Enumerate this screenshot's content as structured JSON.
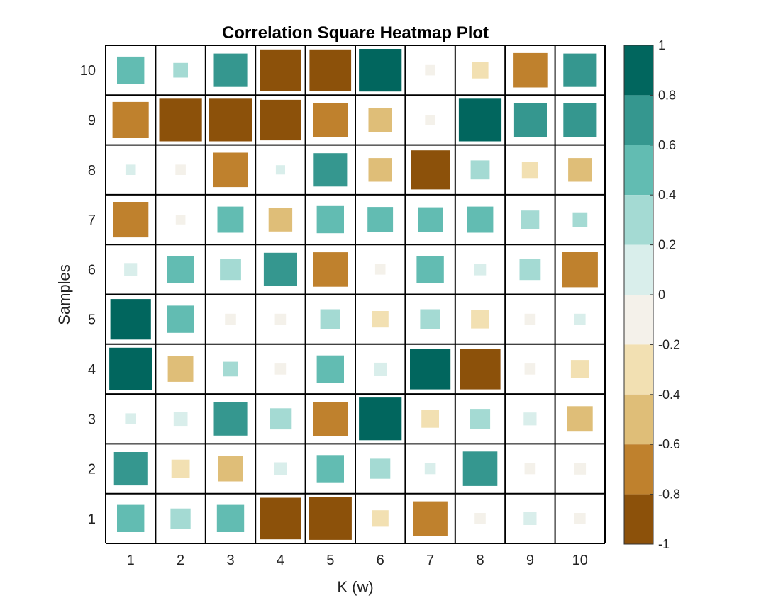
{
  "chart_data": {
    "type": "heatmap",
    "title": "Correlation Square Heatmap Plot",
    "xlabel": "K (w)",
    "ylabel": "Samples",
    "x_categories": [
      "1",
      "2",
      "3",
      "4",
      "5",
      "6",
      "7",
      "8",
      "9",
      "10"
    ],
    "y_categories": [
      "1",
      "2",
      "3",
      "4",
      "5",
      "6",
      "7",
      "8",
      "9",
      "10"
    ],
    "y_order": "bottom-to-top",
    "color_range": [
      -1,
      1
    ],
    "colorbar": {
      "placement": "right",
      "ticks": [
        "1",
        "0.8",
        "0.6",
        "0.4",
        "0.2",
        "0",
        "-0.2",
        "-0.4",
        "-0.6",
        "-0.8",
        "-1"
      ],
      "levels": [
        {
          "min": 0.8,
          "max": 1.0,
          "color": "#01665E"
        },
        {
          "min": 0.6,
          "max": 0.8,
          "color": "#35978F"
        },
        {
          "min": 0.4,
          "max": 0.6,
          "color": "#62BCB2"
        },
        {
          "min": 0.2,
          "max": 0.4,
          "color": "#A4DAD3"
        },
        {
          "min": 0.0,
          "max": 0.2,
          "color": "#D9EEEB"
        },
        {
          "min": -0.2,
          "max": 0.0,
          "color": "#F4F1EA"
        },
        {
          "min": -0.4,
          "max": -0.2,
          "color": "#F2E0B2"
        },
        {
          "min": -0.6,
          "max": -0.4,
          "color": "#DFBE78"
        },
        {
          "min": -0.8,
          "max": -0.6,
          "color": "#BF812D"
        },
        {
          "min": -1.0,
          "max": -0.8,
          "color": "#8C510A"
        }
      ]
    },
    "values": [
      [
        0.55,
        0.35,
        0.55,
        -0.95,
        -0.98,
        -0.25,
        -0.75,
        -0.1,
        0.15,
        -0.1
      ],
      [
        0.72,
        -0.3,
        -0.5,
        0.15,
        0.55,
        0.35,
        0.1,
        0.75,
        -0.1,
        -0.12
      ],
      [
        0.1,
        0.18,
        0.72,
        0.38,
        -0.75,
        0.98,
        -0.28,
        0.35,
        0.15,
        -0.5
      ],
      [
        0.98,
        -0.5,
        0.2,
        -0.1,
        0.55,
        0.15,
        0.92,
        -0.92,
        -0.1,
        -0.3
      ],
      [
        0.92,
        0.55,
        -0.1,
        -0.1,
        0.35,
        -0.25,
        0.35,
        -0.3,
        -0.1,
        0.1
      ],
      [
        0.15,
        0.55,
        0.38,
        0.72,
        -0.75,
        -0.08,
        0.55,
        0.12,
        0.38,
        -0.78
      ],
      [
        -0.78,
        -0.06,
        0.52,
        -0.45,
        0.55,
        0.5,
        0.48,
        0.52,
        0.3,
        0.2
      ],
      [
        0.08,
        -0.08,
        -0.75,
        0.05,
        0.72,
        -0.45,
        -0.88,
        0.32,
        -0.25,
        -0.45
      ],
      [
        -0.8,
        -0.98,
        -0.98,
        -0.92,
        -0.75,
        -0.45,
        -0.08,
        0.98,
        0.72,
        0.72
      ],
      [
        0.55,
        0.2,
        0.72,
        -0.95,
        -0.95,
        0.98,
        -0.08,
        -0.25,
        -0.75,
        0.72
      ]
    ]
  }
}
